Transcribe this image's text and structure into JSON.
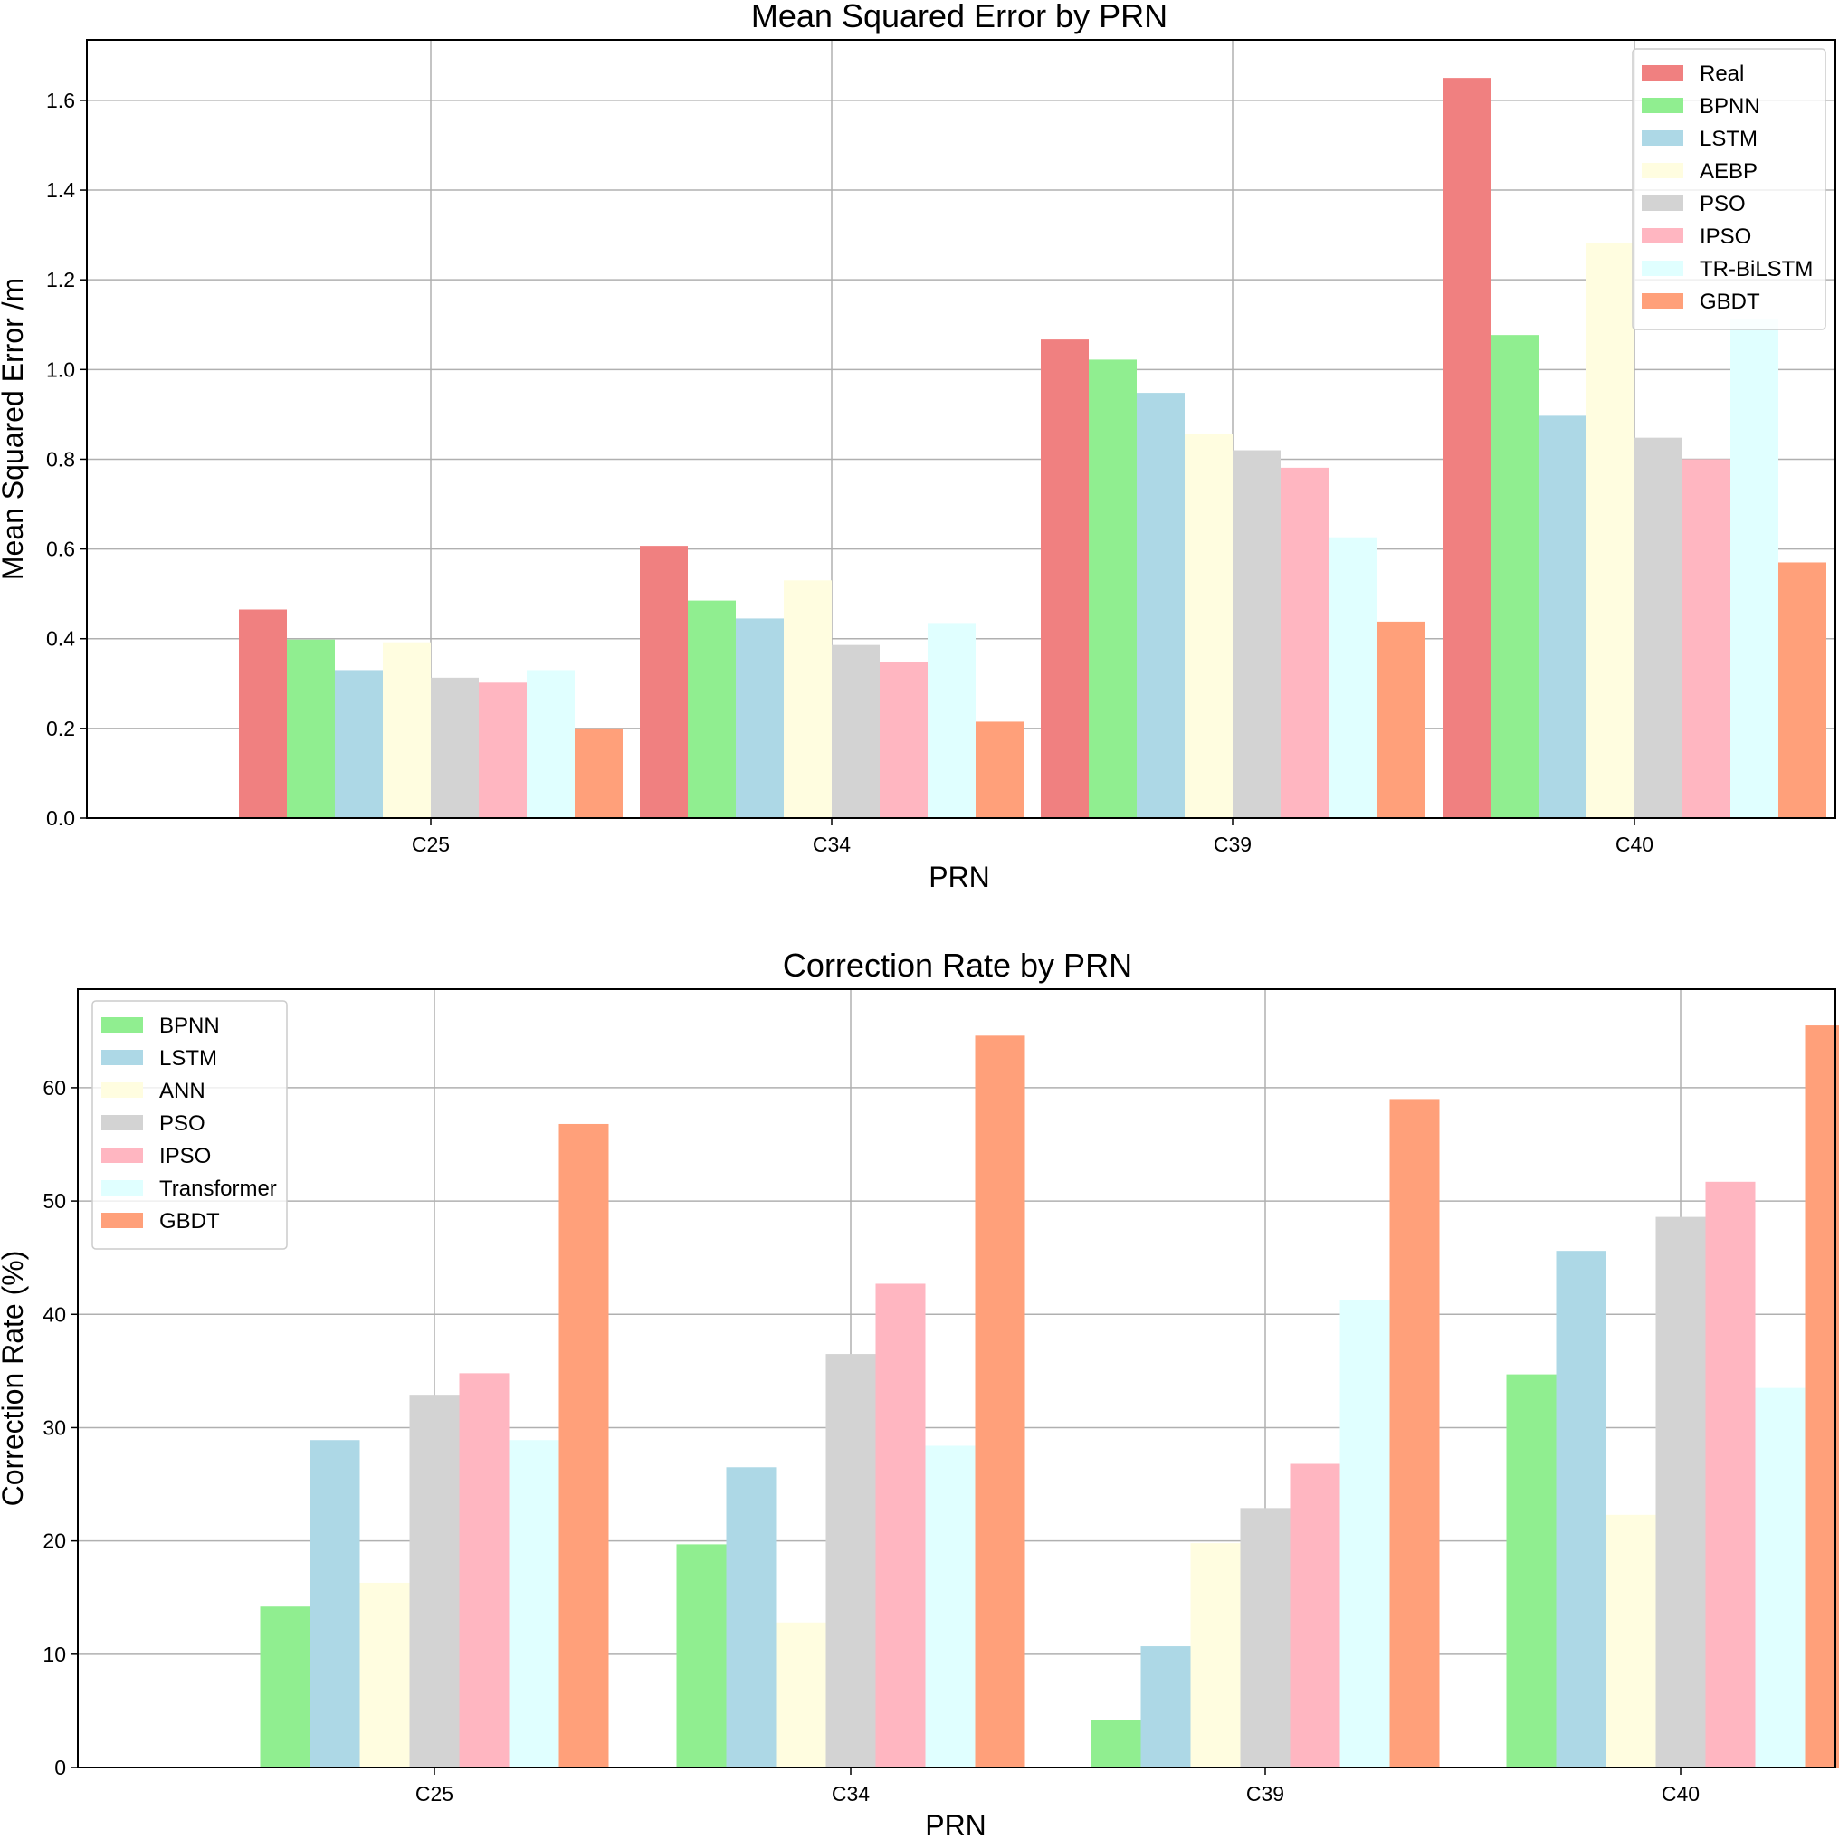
{
  "colors": {
    "Real": "#f08080",
    "BPNN": "#90ee90",
    "LSTM": "#add8e6",
    "AEBP": "#fffde0",
    "ANN": "#fffde0",
    "PSO": "#d3d3d3",
    "IPSO": "#ffb6c1",
    "TR-BiLSTM": "#e0ffff",
    "Transformer": "#e0ffff",
    "GBDT": "#ffa07a"
  },
  "chart_data": [
    {
      "type": "bar",
      "title": "Mean Squared Error by PRN",
      "xlabel": "PRN",
      "ylabel": "Mean Squared Error /m",
      "ylim": [
        0,
        1.735
      ],
      "yticks": [
        "0.0",
        "0.2",
        "0.4",
        "0.6",
        "0.8",
        "1.0",
        "1.2",
        "1.4",
        "1.6"
      ],
      "ytick_values": [
        0,
        0.2,
        0.4,
        0.6,
        0.8,
        1.0,
        1.2,
        1.4,
        1.6
      ],
      "grid": true,
      "legend_position": "top-right",
      "categories": [
        "C25",
        "C34",
        "C39",
        "C40"
      ],
      "series": [
        {
          "name": "Real",
          "values": [
            0.465,
            0.607,
            1.067,
            1.65
          ]
        },
        {
          "name": "BPNN",
          "values": [
            0.398,
            0.485,
            1.022,
            1.077
          ]
        },
        {
          "name": "LSTM",
          "values": [
            0.33,
            0.445,
            0.948,
            0.897
          ]
        },
        {
          "name": "AEBP",
          "values": [
            0.392,
            0.53,
            0.857,
            1.283
          ]
        },
        {
          "name": "PSO",
          "values": [
            0.313,
            0.386,
            0.82,
            0.848
          ]
        },
        {
          "name": "IPSO",
          "values": [
            0.302,
            0.349,
            0.781,
            0.8
          ]
        },
        {
          "name": "TR-BiLSTM",
          "values": [
            0.33,
            0.435,
            0.626,
            1.113
          ]
        },
        {
          "name": "GBDT",
          "values": [
            0.2,
            0.215,
            0.438,
            0.57
          ]
        }
      ]
    },
    {
      "type": "bar",
      "title": "Correction Rate by PRN",
      "xlabel": "PRN",
      "ylabel": "Correction Rate (%)",
      "ylim": [
        0,
        68.7
      ],
      "yticks": [
        "0",
        "10",
        "20",
        "30",
        "40",
        "50",
        "60"
      ],
      "ytick_values": [
        0,
        10,
        20,
        30,
        40,
        50,
        60
      ],
      "grid": true,
      "legend_position": "top-left",
      "categories": [
        "C25",
        "C34",
        "C39",
        "C40"
      ],
      "series": [
        {
          "name": "BPNN",
          "values": [
            14.2,
            19.7,
            4.2,
            34.7
          ]
        },
        {
          "name": "LSTM",
          "values": [
            28.9,
            26.5,
            10.7,
            45.6
          ]
        },
        {
          "name": "ANN",
          "values": [
            16.3,
            12.8,
            19.8,
            22.3
          ]
        },
        {
          "name": "PSO",
          "values": [
            32.9,
            36.5,
            22.9,
            48.6
          ]
        },
        {
          "name": "IPSO",
          "values": [
            34.8,
            42.7,
            26.8,
            51.7
          ]
        },
        {
          "name": "Transformer",
          "values": [
            28.9,
            28.4,
            41.3,
            33.5
          ]
        },
        {
          "name": "GBDT",
          "values": [
            56.8,
            64.6,
            59.0,
            65.5
          ]
        }
      ]
    }
  ]
}
